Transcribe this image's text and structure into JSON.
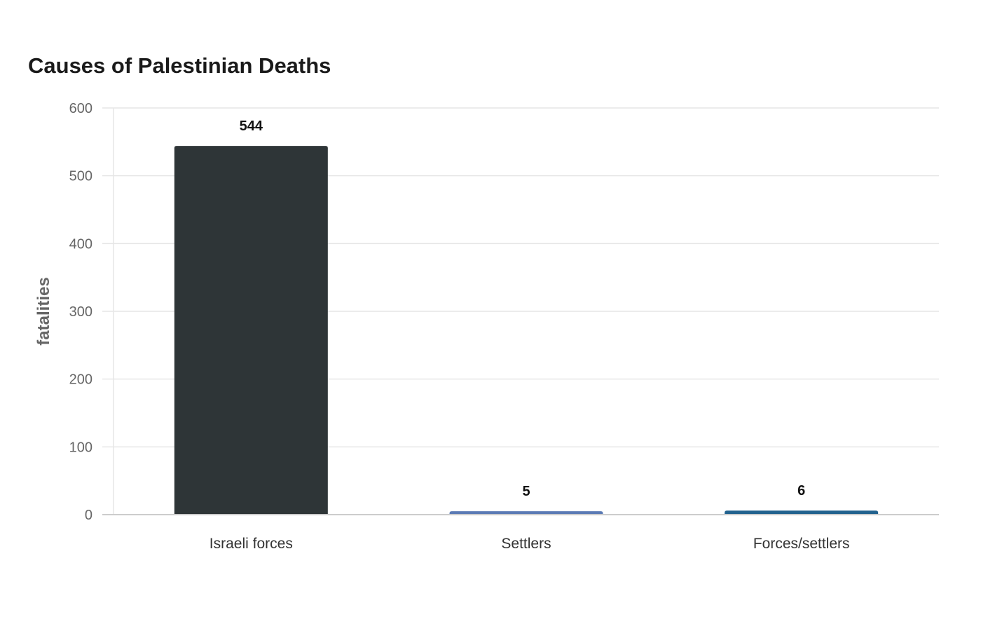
{
  "chart_data": {
    "type": "bar",
    "title": "Causes of Palestinian Deaths",
    "xlabel": "",
    "ylabel": "fatalities",
    "categories": [
      "Israeli forces",
      "Settlers",
      "Forces/settlers"
    ],
    "values": [
      544,
      5,
      6
    ],
    "ylim": [
      0,
      600
    ],
    "yticks": [
      0,
      100,
      200,
      300,
      400,
      500,
      600
    ],
    "grid": true,
    "legend": "none",
    "colors": [
      "#2e3537",
      "#5b7bb5",
      "#22628e"
    ],
    "gridline_color": "#e6e6e6",
    "axis_color": "#cccccc"
  }
}
